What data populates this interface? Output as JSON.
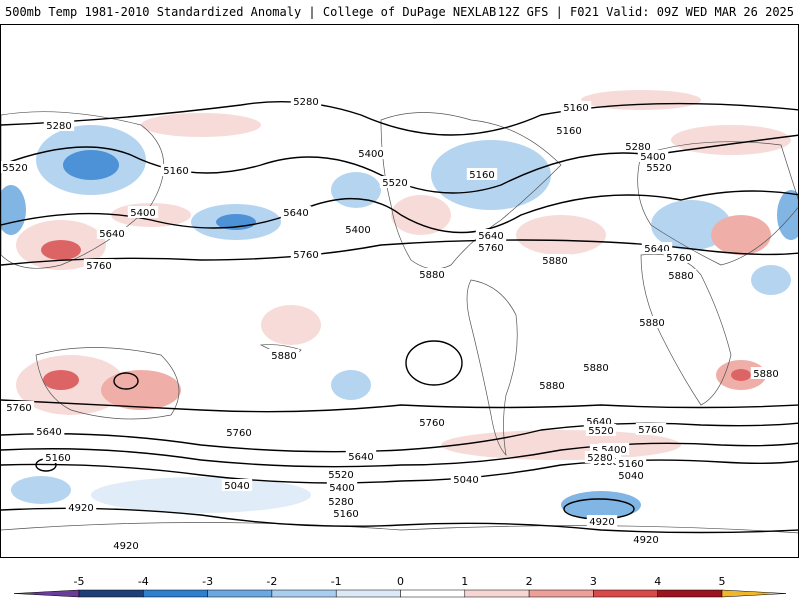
{
  "header": {
    "left_title": "500mb Temp 1981-2010 Standardized Anomaly | College of DuPage NEXLAB",
    "right_title": "12Z GFS | F021 Valid: 09Z WED MAR 26 2025"
  },
  "colorbar": {
    "ticks": [
      "-5",
      "-4",
      "-3",
      "-2",
      "-1",
      "0",
      "1",
      "2",
      "3",
      "4",
      "5"
    ],
    "colors": [
      "#6a3d9a",
      "#1f3f7a",
      "#2f7fcf",
      "#6aa9e0",
      "#a9cdee",
      "#dbe9f6",
      "#ffffff",
      "#f6d5d2",
      "#eda09a",
      "#d84a4a",
      "#9b1520",
      "#f1b72c"
    ]
  },
  "map": {
    "contour_labels": [
      "5280",
      "5160",
      "5280",
      "5520",
      "5160",
      "5400",
      "5280",
      "5160",
      "5400",
      "5520",
      "5160",
      "5640",
      "5400",
      "5520",
      "5640",
      "5640",
      "5760",
      "5760",
      "5760",
      "5400",
      "5160",
      "5520",
      "5640",
      "5760",
      "5880",
      "5880",
      "5640",
      "5760",
      "5880",
      "5880",
      "5880",
      "5880",
      "5880",
      "5760",
      "5760",
      "5640",
      "5400",
      "5160",
      "5640",
      "5520",
      "5400",
      "5280",
      "5160",
      "5040",
      "5040",
      "4920",
      "4920",
      "4920",
      "5640",
      "5520",
      "5400",
      "5280",
      "5160",
      "5040",
      "4920",
      "5760",
      "5880"
    ]
  }
}
